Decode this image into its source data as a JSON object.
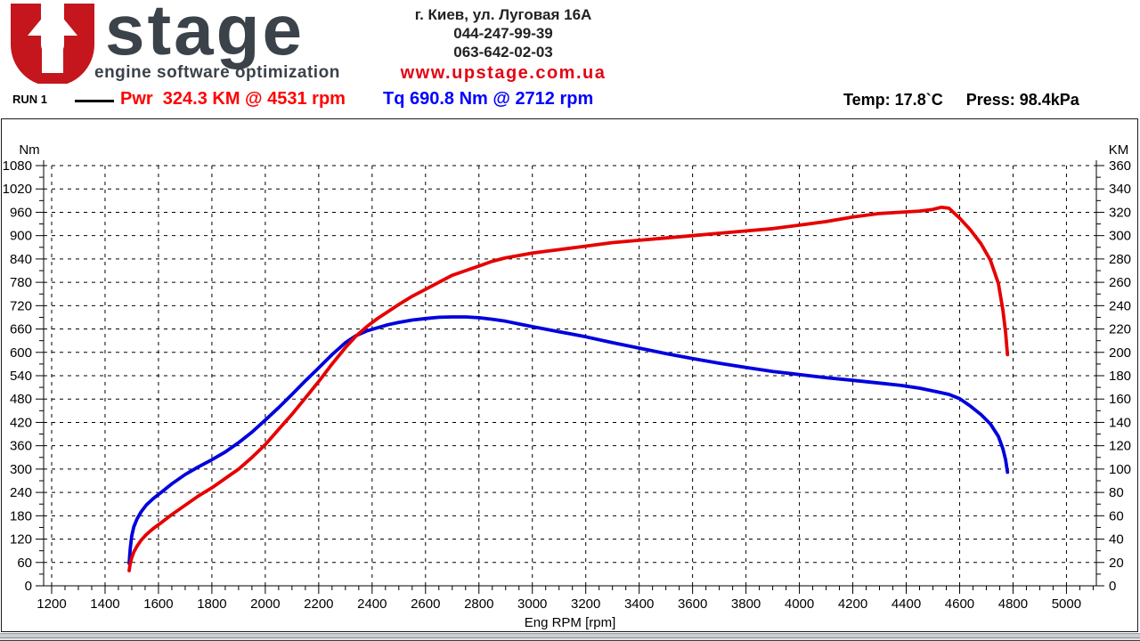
{
  "header": {
    "logo": {
      "text": "stage",
      "tagline": "engine software optimization",
      "red": "#c4161c",
      "dark": "#3b4249"
    },
    "contact": {
      "address": "г. Киев, ул. Луговая 16А",
      "phone1": "044-247-99-39",
      "phone2": "063-642-02-03",
      "website": "www.upstage.com.ua"
    }
  },
  "legend": {
    "run_label": "RUN 1",
    "power_reading": "Pwr  324.3 KM @ 4531 rpm",
    "torque_reading": "Tq 690.8 Nm @ 2712 rpm",
    "temp": "Temp: 17.8`C",
    "press": "Press: 98.4kPa"
  },
  "chart_data": {
    "type": "line",
    "xlabel": "Eng RPM [rpm]",
    "ylabel_left": "Nm",
    "ylabel_right": "KM",
    "x_domain": [
      1170,
      5112
    ],
    "x_ticks_start": 1200,
    "x_ticks_end": 5000,
    "x_ticks_step": 200,
    "x_minor_step": 50,
    "x_minor_end": 5100,
    "y_left": {
      "min": 0,
      "max": 1080,
      "step": 60,
      "minor": 30
    },
    "y_right": {
      "min": 0,
      "max": 360,
      "step": 20,
      "minor": 10
    },
    "grid": "dashed",
    "series": [
      {
        "name": "Tq",
        "axis": "left",
        "unit": "Nm",
        "color": "#0000dd",
        "peak": "690.8 Nm @ 2712 rpm",
        "peak_rpm": 2712,
        "peak_value": 690.8,
        "points": [
          [
            1490,
            58
          ],
          [
            1494,
            95
          ],
          [
            1500,
            128
          ],
          [
            1508,
            152
          ],
          [
            1520,
            172
          ],
          [
            1535,
            190
          ],
          [
            1555,
            208
          ],
          [
            1580,
            224
          ],
          [
            1610,
            240
          ],
          [
            1650,
            262
          ],
          [
            1700,
            286
          ],
          [
            1750,
            306
          ],
          [
            1800,
            324
          ],
          [
            1850,
            344
          ],
          [
            1900,
            368
          ],
          [
            1950,
            395
          ],
          [
            2000,
            426
          ],
          [
            2050,
            458
          ],
          [
            2100,
            492
          ],
          [
            2150,
            527
          ],
          [
            2200,
            560
          ],
          [
            2250,
            594
          ],
          [
            2300,
            625
          ],
          [
            2340,
            643
          ],
          [
            2380,
            655
          ],
          [
            2420,
            663
          ],
          [
            2460,
            671
          ],
          [
            2500,
            677
          ],
          [
            2550,
            683
          ],
          [
            2600,
            687
          ],
          [
            2650,
            690
          ],
          [
            2700,
            691
          ],
          [
            2750,
            691
          ],
          [
            2800,
            689
          ],
          [
            2850,
            685
          ],
          [
            2900,
            680
          ],
          [
            2950,
            673
          ],
          [
            3000,
            666
          ],
          [
            3100,
            653
          ],
          [
            3200,
            640
          ],
          [
            3300,
            625
          ],
          [
            3400,
            611
          ],
          [
            3500,
            597
          ],
          [
            3600,
            584
          ],
          [
            3700,
            572
          ],
          [
            3800,
            561
          ],
          [
            3900,
            551
          ],
          [
            4000,
            543
          ],
          [
            4100,
            535
          ],
          [
            4200,
            528
          ],
          [
            4300,
            521
          ],
          [
            4380,
            515
          ],
          [
            4450,
            508
          ],
          [
            4520,
            498
          ],
          [
            4560,
            492
          ],
          [
            4600,
            481
          ],
          [
            4640,
            462
          ],
          [
            4680,
            440
          ],
          [
            4715,
            416
          ],
          [
            4745,
            384
          ],
          [
            4762,
            352
          ],
          [
            4772,
            324
          ],
          [
            4779,
            292
          ]
        ]
      },
      {
        "name": "Pwr",
        "axis": "right",
        "unit": "KM",
        "color": "#e60000",
        "peak": "324.3 KM @ 4531 rpm",
        "peak_rpm": 4531,
        "peak_value": 324.3,
        "points": [
          [
            1490,
            13
          ],
          [
            1494,
            19
          ],
          [
            1500,
            24
          ],
          [
            1508,
            29
          ],
          [
            1520,
            34
          ],
          [
            1535,
            39
          ],
          [
            1555,
            44
          ],
          [
            1580,
            49
          ],
          [
            1610,
            54
          ],
          [
            1650,
            61
          ],
          [
            1700,
            69
          ],
          [
            1750,
            77
          ],
          [
            1800,
            84
          ],
          [
            1850,
            92
          ],
          [
            1900,
            100
          ],
          [
            1950,
            110
          ],
          [
            2000,
            121
          ],
          [
            2050,
            134
          ],
          [
            2100,
            147
          ],
          [
            2150,
            161
          ],
          [
            2200,
            175
          ],
          [
            2250,
            190
          ],
          [
            2300,
            204
          ],
          [
            2340,
            214
          ],
          [
            2380,
            222
          ],
          [
            2420,
            229
          ],
          [
            2460,
            235
          ],
          [
            2500,
            241
          ],
          [
            2550,
            248
          ],
          [
            2600,
            254
          ],
          [
            2650,
            260
          ],
          [
            2700,
            266
          ],
          [
            2750,
            270
          ],
          [
            2800,
            274
          ],
          [
            2850,
            278
          ],
          [
            2900,
            281
          ],
          [
            2950,
            283
          ],
          [
            3000,
            285
          ],
          [
            3100,
            288
          ],
          [
            3200,
            291
          ],
          [
            3300,
            294
          ],
          [
            3400,
            296
          ],
          [
            3500,
            298
          ],
          [
            3600,
            300
          ],
          [
            3700,
            302
          ],
          [
            3800,
            304
          ],
          [
            3900,
            306
          ],
          [
            4000,
            309
          ],
          [
            4100,
            312
          ],
          [
            4200,
            316
          ],
          [
            4300,
            319
          ],
          [
            4380,
            320
          ],
          [
            4450,
            321
          ],
          [
            4500,
            322.5
          ],
          [
            4531,
            324.3
          ],
          [
            4560,
            323.5
          ],
          [
            4600,
            315
          ],
          [
            4640,
            305
          ],
          [
            4680,
            293
          ],
          [
            4715,
            279
          ],
          [
            4745,
            259
          ],
          [
            4762,
            236
          ],
          [
            4772,
            217
          ],
          [
            4779,
            198
          ]
        ]
      }
    ]
  }
}
